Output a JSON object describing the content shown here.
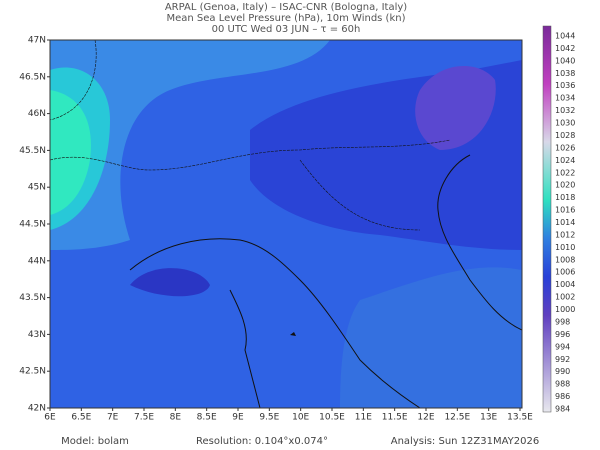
{
  "header": {
    "line1": "ARPAL (Genoa, Italy)  –  ISAC-CNR (Bologna, Italy)",
    "line2": "Mean Sea Level Pressure (hPa), 10m Winds (kn)",
    "line3": "00 UTC Wed 03 JUN  –  τ = 60h"
  },
  "map": {
    "lon_ticks": [
      "6E",
      "6.5E",
      "7E",
      "7.5E",
      "8E",
      "8.5E",
      "9E",
      "9.5E",
      "10E",
      "10.5E",
      "11E",
      "11.5E",
      "12E",
      "12.5E",
      "13E",
      "13.5E"
    ],
    "lat_ticks": [
      "47N",
      "46.5N",
      "46N",
      "45.5N",
      "45N",
      "44.5N",
      "44N",
      "43.5N",
      "43N",
      "42.5N",
      "42N"
    ]
  },
  "colorbar": {
    "labels": [
      "1044",
      "1042",
      "1040",
      "1038",
      "1036",
      "1034",
      "1032",
      "1030",
      "1028",
      "1026",
      "1024",
      "1022",
      "1020",
      "1018",
      "1016",
      "1014",
      "1012",
      "1010",
      "1008",
      "1006",
      "1004",
      "1002",
      "1000",
      "998",
      "996",
      "994",
      "992",
      "990",
      "988",
      "986",
      "984"
    ]
  },
  "footer": {
    "model": "Model: bolam",
    "resolution": "Resolution: 0.104°x0.074°",
    "analysis": "Analysis: Sun 12Z31MAY2026"
  }
}
